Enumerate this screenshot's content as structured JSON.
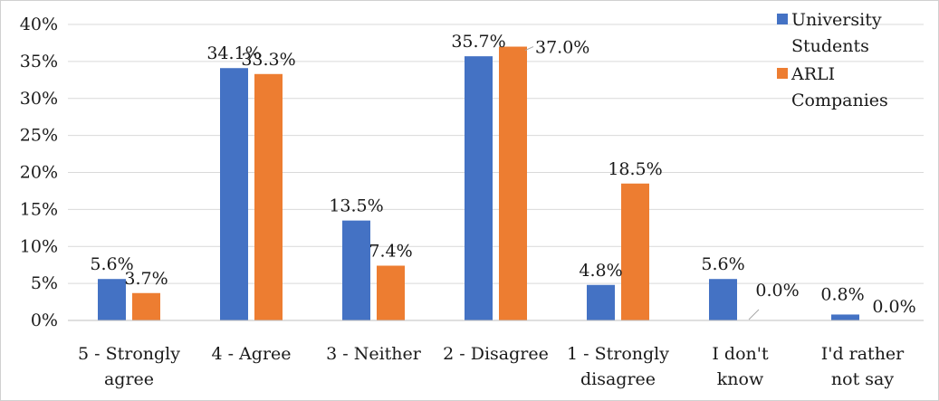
{
  "chart_data": {
    "type": "bar",
    "categories": [
      [
        "5 - Strongly",
        "agree"
      ],
      [
        "4 - Agree"
      ],
      [
        "3 - Neither"
      ],
      [
        "2 - Disagree"
      ],
      [
        "1 - Strongly",
        "disagree"
      ],
      [
        "I don't",
        "know"
      ],
      [
        "I'd rather",
        "not say"
      ]
    ],
    "series": [
      {
        "name": [
          "University",
          "Students"
        ],
        "color": "#4472c4",
        "values": [
          5.6,
          34.1,
          13.5,
          35.7,
          4.8,
          5.6,
          0.8
        ],
        "labels": [
          "5.6%",
          "34.1%",
          "13.5%",
          "35.7%",
          "4.8%",
          "5.6%",
          "0.8%"
        ]
      },
      {
        "name": [
          "ARLI",
          "Companies"
        ],
        "color": "#ed7d31",
        "values": [
          3.7,
          33.3,
          7.4,
          37.0,
          18.5,
          0.0,
          0.0
        ],
        "labels": [
          "3.7%",
          "33.3%",
          "7.4%",
          "37.0%",
          "18.5%",
          "0.0%",
          "0.0%"
        ]
      }
    ],
    "ylim": [
      0,
      40
    ],
    "yticks": [
      "0%",
      "5%",
      "10%",
      "15%",
      "20%",
      "25%",
      "30%",
      "35%",
      "40%"
    ],
    "grid": true,
    "legend": "top-right"
  }
}
